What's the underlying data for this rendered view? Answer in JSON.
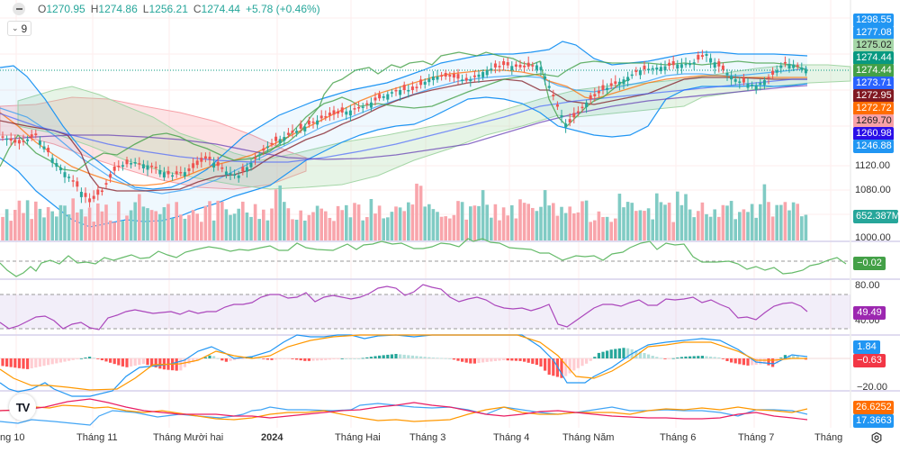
{
  "legend": {
    "open_label": "O",
    "open": "1270.95",
    "high_label": "H",
    "high": "1274.86",
    "low_label": "L",
    "low": "1256.21",
    "close_label": "C",
    "close": "1274.44",
    "change": "+5.78 (+0.46%)",
    "indicator_count": "9"
  },
  "price_axis": {
    "badges": [
      {
        "value": "1298.55",
        "color": "#2196f3",
        "text_color": "#ffffff"
      },
      {
        "value": "1277.08",
        "color": "#2196f3",
        "text_color": "#ffffff"
      },
      {
        "value": "1275.02",
        "color": "#a5d6a7",
        "text_color": "#222222"
      },
      {
        "value": "1274.44",
        "color": "#089981",
        "text_color": "#ffffff"
      },
      {
        "value": "1274.44",
        "color": "#43a047",
        "text_color": "#ffffff"
      },
      {
        "value": "1273.71",
        "color": "#2962ff",
        "text_color": "#ffffff"
      },
      {
        "value": "1272.95",
        "color": "#801922",
        "text_color": "#ffffff"
      },
      {
        "value": "1272.72",
        "color": "#ff6d00",
        "text_color": "#ffffff"
      },
      {
        "value": "1269.70",
        "color": "#f7a1a8",
        "text_color": "#222222"
      },
      {
        "value": "1260.98",
        "color": "#2a0fe8",
        "text_color": "#ffffff"
      },
      {
        "value": "1246.88",
        "color": "#2196f3",
        "text_color": "#ffffff"
      }
    ],
    "ticks": [
      "1120.00",
      "1080.00",
      "1000.00"
    ],
    "volume_badge": {
      "value": "652.387M",
      "color": "#26a69a"
    }
  },
  "oscillator_pane": {
    "badge": "−0.02",
    "color": "#43a047"
  },
  "rsi_pane": {
    "ticks": [
      "80.00",
      "40.00"
    ],
    "badge": "49.49",
    "color": "#9c27b0"
  },
  "macd_pane": {
    "badges": [
      {
        "value": "1.84",
        "color": "#2196f3"
      },
      {
        "value": "−0.63",
        "color": "#f23645"
      }
    ],
    "tick": "−20.00"
  },
  "dmi_pane": {
    "badges": [
      {
        "value": "26.6252",
        "color": "#ff6d00"
      },
      {
        "value": "17.3663",
        "color": "#2196f3"
      }
    ]
  },
  "time_axis": {
    "labels": [
      "ng 10",
      "Tháng 11",
      "Tháng Mười hai",
      "2024",
      "Tháng Hai",
      "Tháng 3",
      "Tháng 4",
      "Tháng Năm",
      "Tháng 6",
      "Tháng 7",
      "Tháng"
    ]
  },
  "logo": "TV",
  "icons": {
    "collapse": "minus-icon",
    "toggle": "chevron-down-icon",
    "settings": "gear-icon"
  },
  "colors": {
    "up": "#26a69a",
    "down": "#ef5350"
  }
}
